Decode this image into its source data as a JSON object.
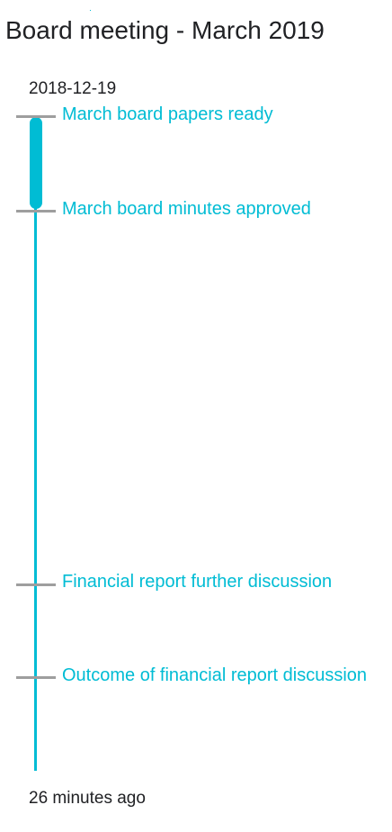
{
  "header": {
    "title": "Board meeting - March 2019"
  },
  "timeline": {
    "start_date": "2018-12-19",
    "end_label": "26 minutes ago",
    "events": [
      {
        "label": "March board papers ready"
      },
      {
        "label": "March board minutes approved"
      },
      {
        "label": "Financial report further discussion"
      },
      {
        "label": "Outcome of financial report discussion"
      }
    ]
  },
  "colors": {
    "accent": "#00bcd4",
    "tick": "#9e9e9e",
    "text": "#202124"
  }
}
